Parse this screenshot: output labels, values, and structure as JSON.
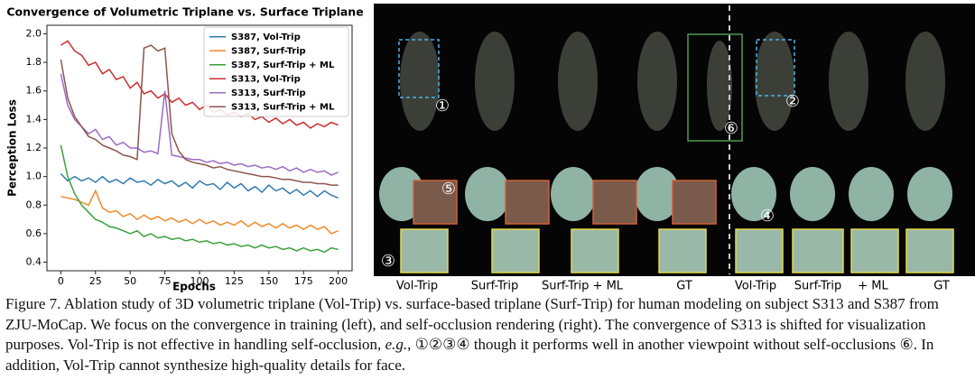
{
  "chart_data": {
    "type": "line",
    "title": "Convergence of Volumetric Triplane vs. Surface Triplane",
    "x_label": "Epochs",
    "y_label": "Perception Loss",
    "xlim": [
      -10,
      210
    ],
    "ylim": [
      0.34,
      2.06
    ],
    "xticks": [
      0,
      25,
      50,
      75,
      100,
      125,
      150,
      175,
      200
    ],
    "yticks": [
      0.4,
      0.6,
      0.8,
      {
        "value": 1,
        "label": "1.0"
      },
      1.2,
      1.4,
      1.6,
      1.8,
      {
        "value": 2,
        "label": "2.0"
      }
    ],
    "legend": "upper right",
    "x": [
      0,
      5,
      10,
      15,
      20,
      25,
      30,
      35,
      40,
      45,
      50,
      55,
      60,
      65,
      70,
      75,
      80,
      85,
      90,
      95,
      100,
      105,
      110,
      115,
      120,
      125,
      130,
      135,
      140,
      145,
      150,
      155,
      160,
      165,
      170,
      175,
      180,
      185,
      190,
      195,
      200
    ],
    "series": [
      {
        "name": "S387, Vol-Trip",
        "color": "#2f7bb0",
        "values": [
          1.02,
          0.97,
          1.0,
          0.97,
          0.99,
          0.96,
          1.0,
          0.96,
          0.98,
          0.95,
          0.99,
          0.96,
          0.97,
          0.94,
          0.98,
          0.95,
          0.97,
          0.93,
          0.96,
          0.92,
          0.97,
          0.94,
          0.95,
          0.91,
          0.96,
          0.92,
          0.95,
          0.9,
          0.93,
          0.89,
          0.94,
          0.9,
          0.92,
          0.88,
          0.91,
          0.87,
          0.9,
          0.86,
          0.9,
          0.87,
          0.85
        ]
      },
      {
        "name": "S387, Surf-Trip",
        "color": "#f0892a",
        "values": [
          0.86,
          0.85,
          0.84,
          0.82,
          0.8,
          0.9,
          0.78,
          0.75,
          0.76,
          0.72,
          0.74,
          0.7,
          0.73,
          0.7,
          0.72,
          0.69,
          0.71,
          0.68,
          0.7,
          0.67,
          0.7,
          0.67,
          0.69,
          0.66,
          0.68,
          0.66,
          0.69,
          0.65,
          0.68,
          0.65,
          0.67,
          0.64,
          0.67,
          0.64,
          0.66,
          0.63,
          0.66,
          0.63,
          0.65,
          0.6,
          0.62
        ]
      },
      {
        "name": "S387, Surf-Trip + ML",
        "color": "#3aa23a",
        "values": [
          1.22,
          1.0,
          0.88,
          0.8,
          0.75,
          0.7,
          0.68,
          0.65,
          0.64,
          0.62,
          0.6,
          0.62,
          0.58,
          0.6,
          0.57,
          0.58,
          0.56,
          0.57,
          0.55,
          0.56,
          0.54,
          0.55,
          0.53,
          0.54,
          0.52,
          0.53,
          0.51,
          0.52,
          0.5,
          0.52,
          0.5,
          0.51,
          0.49,
          0.5,
          0.48,
          0.5,
          0.48,
          0.49,
          0.47,
          0.5,
          0.49
        ]
      },
      {
        "name": "S313, Vol-Trip",
        "color": "#cf2d2d",
        "values": [
          1.92,
          1.95,
          1.88,
          1.85,
          1.78,
          1.8,
          1.72,
          1.75,
          1.68,
          1.7,
          1.62,
          1.66,
          1.58,
          1.6,
          1.55,
          1.58,
          1.52,
          1.55,
          1.5,
          1.52,
          1.47,
          1.5,
          1.45,
          1.47,
          1.43,
          1.45,
          1.42,
          1.44,
          1.4,
          1.42,
          1.38,
          1.41,
          1.37,
          1.4,
          1.36,
          1.38,
          1.34,
          1.37,
          1.35,
          1.38,
          1.36
        ]
      },
      {
        "name": "S313, Surf-Trip",
        "color": "#9a6cc4",
        "values": [
          1.72,
          1.5,
          1.4,
          1.35,
          1.3,
          1.33,
          1.26,
          1.28,
          1.22,
          1.24,
          1.2,
          1.2,
          1.17,
          1.18,
          1.16,
          1.6,
          1.15,
          1.14,
          1.13,
          1.12,
          1.12,
          1.1,
          1.11,
          1.09,
          1.1,
          1.08,
          1.09,
          1.07,
          1.08,
          1.06,
          1.07,
          1.05,
          1.07,
          1.04,
          1.06,
          1.03,
          1.05,
          1.03,
          1.04,
          1.01,
          1.03
        ]
      },
      {
        "name": "S313, Surf-Trip + ML",
        "color": "#8c564b",
        "values": [
          1.82,
          1.55,
          1.42,
          1.35,
          1.28,
          1.26,
          1.22,
          1.2,
          1.18,
          1.15,
          1.14,
          1.12,
          1.9,
          1.92,
          1.88,
          1.9,
          1.3,
          1.18,
          1.12,
          1.1,
          1.09,
          1.08,
          1.06,
          1.07,
          1.05,
          1.04,
          1.03,
          1.02,
          1.01,
          1.0,
          1.0,
          0.99,
          0.98,
          0.98,
          0.97,
          0.96,
          0.96,
          0.95,
          0.95,
          0.94,
          0.94
        ]
      }
    ]
  },
  "figure": {
    "markers": [
      "①",
      "②",
      "③",
      "④",
      "⑤",
      "⑥"
    ],
    "column_labels": [
      "Vol-Trip",
      "Surf-Trip",
      "Surf-Trip + ML",
      "GT",
      "Vol-Trip",
      "Surf-Trip",
      "+ ML",
      "GT"
    ],
    "caption": [
      "Figure 7. Ablation study of 3D volumetric triplane (Vol-Trip) vs. surface-based triplane (Surf-Trip) for human modeling on subject S313 and S387 from ZJU-MoCap. We focus on the convergence in training (left), and self-occlusion rendering (right). The convergence of S313 is shifted for visualization purposes. Vol-Trip is not effective in handling self-occlusion, ",
      "e.g.",
      ", ①②③④ though it performs well in another viewpoint without self-occlusions ⑥. In addition, Vol-Trip cannot synthesize high-quality details for face."
    ]
  }
}
